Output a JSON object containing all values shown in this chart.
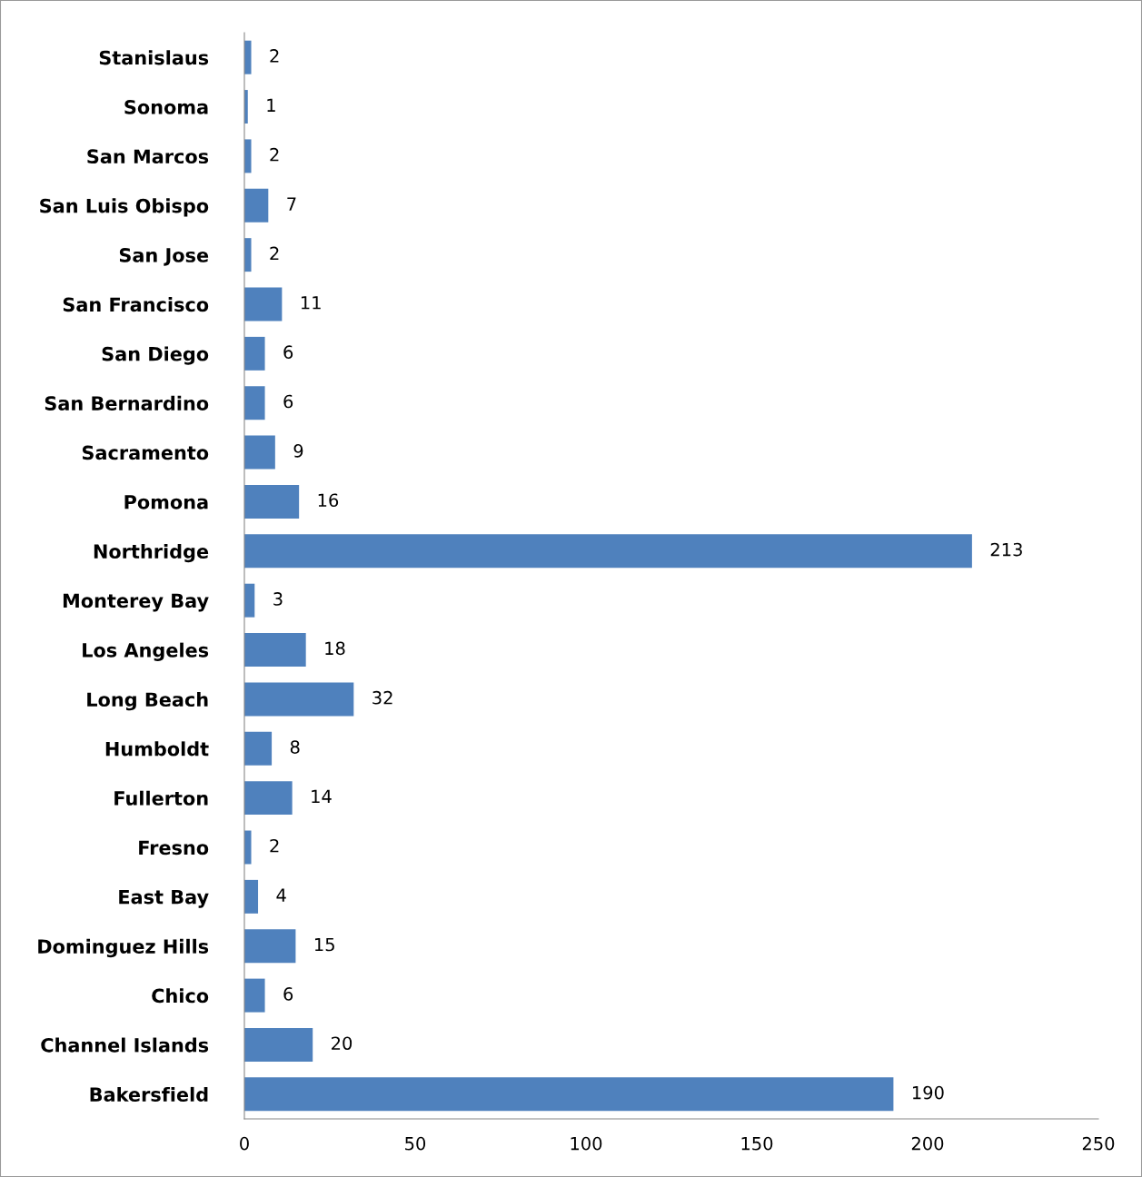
{
  "chart_data": {
    "type": "bar",
    "orientation": "horizontal",
    "categories": [
      "Stanislaus",
      "Sonoma",
      "San Marcos",
      "San Luis Obispo",
      "San Jose",
      "San Francisco",
      "San Diego",
      "San Bernardino",
      "Sacramento",
      "Pomona",
      "Northridge",
      "Monterey Bay",
      "Los Angeles",
      "Long Beach",
      "Humboldt",
      "Fullerton",
      "Fresno",
      "East Bay",
      "Dominguez Hills",
      "Chico",
      "Channel Islands",
      "Bakersfield"
    ],
    "values": [
      2,
      1,
      2,
      7,
      2,
      11,
      6,
      6,
      9,
      16,
      213,
      3,
      18,
      32,
      8,
      14,
      2,
      4,
      15,
      6,
      20,
      190
    ],
    "color": "#4f81bd",
    "xlim": [
      0,
      250
    ],
    "xticks": [
      0,
      50,
      100,
      150,
      200,
      250
    ],
    "data_labels": true,
    "grid": false,
    "legend": false
  }
}
